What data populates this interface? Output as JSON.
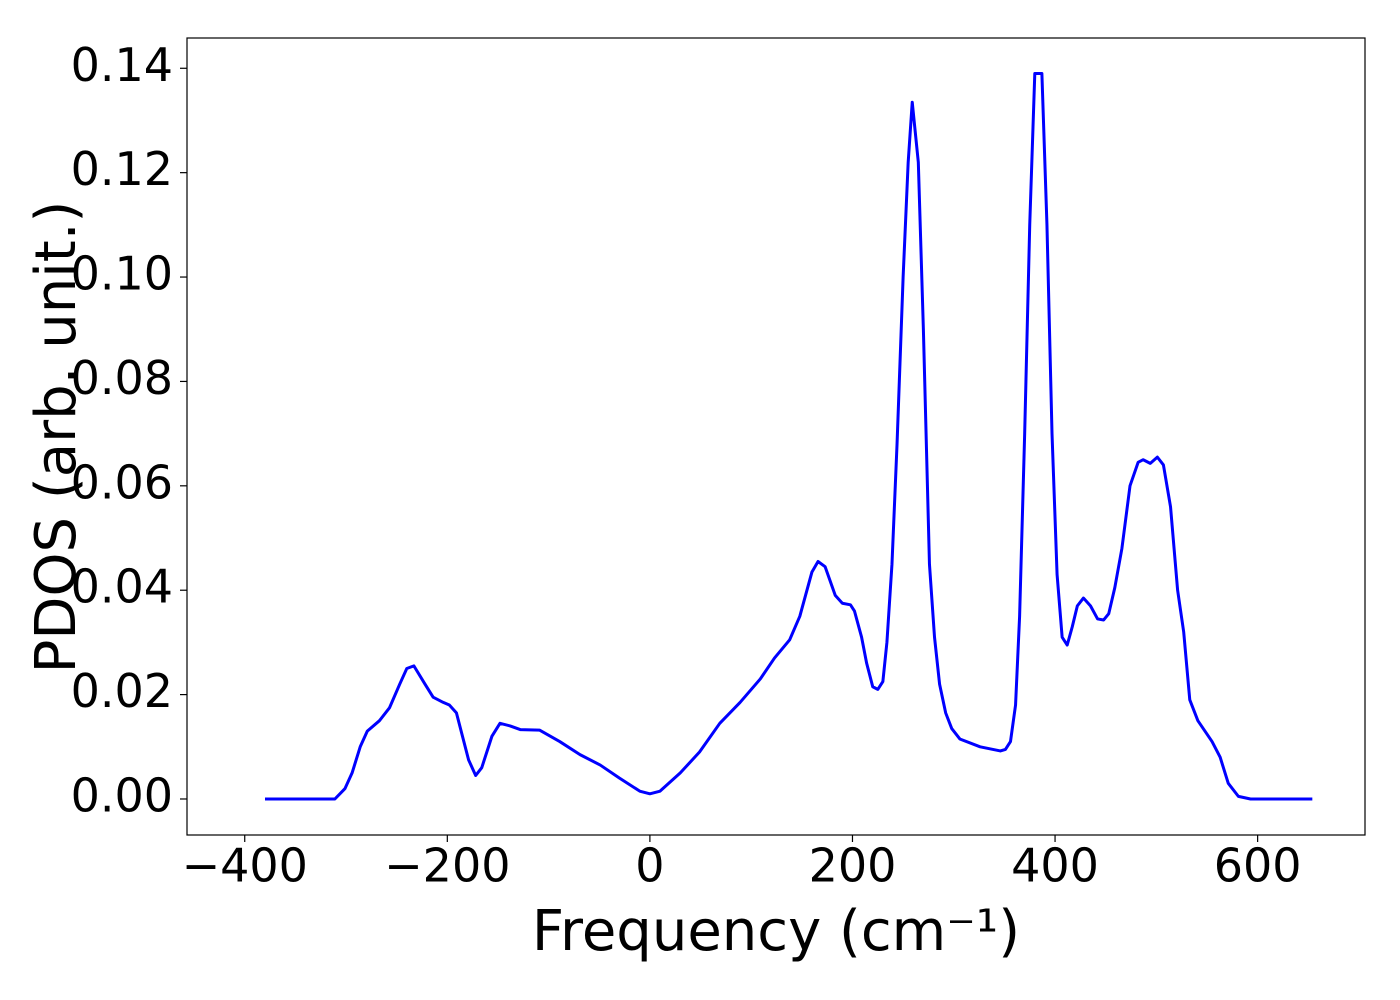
{
  "chart_data": {
    "type": "line",
    "xlabel": "Frequency (cm⁻¹)",
    "ylabel": "PDOS (arb. unit.)",
    "x": [
      -380,
      -311,
      -301,
      -294,
      -286,
      -279,
      -267,
      -257,
      -247,
      -240,
      -233,
      -222,
      -214,
      -204,
      -198,
      -191,
      -185,
      -179,
      -172,
      -166,
      -156,
      -148,
      -138,
      -128,
      -109,
      -89,
      -69,
      -49,
      -30,
      -10,
      0,
      10,
      30,
      49,
      69,
      89,
      109,
      123,
      138,
      148,
      160,
      166,
      173,
      183,
      190,
      198,
      202,
      209,
      214,
      220,
      225,
      230,
      234,
      239,
      244,
      250,
      255,
      259,
      265,
      270,
      276,
      281,
      286,
      292,
      298,
      306,
      326,
      346,
      351,
      356,
      361,
      365,
      370,
      375,
      380,
      387,
      392,
      397,
      402,
      407,
      412,
      417,
      422,
      428,
      435,
      442,
      448,
      453,
      459,
      466,
      474,
      482,
      487,
      494,
      501,
      507,
      514,
      521,
      527,
      533,
      541,
      555,
      563,
      571,
      581,
      593,
      654
    ],
    "series": [
      {
        "name": "PDOS",
        "color": "#0000ff",
        "values": [
          0,
          0,
          0.002,
          0.005,
          0.01,
          0.013,
          0.015,
          0.0175,
          0.022,
          0.025,
          0.0255,
          0.022,
          0.0195,
          0.0185,
          0.018,
          0.0165,
          0.012,
          0.0075,
          0.0045,
          0.006,
          0.012,
          0.0145,
          0.014,
          0.0133,
          0.0132,
          0.011,
          0.0085,
          0.0065,
          0.004,
          0.0015,
          0.001,
          0.0015,
          0.005,
          0.009,
          0.0145,
          0.0185,
          0.023,
          0.027,
          0.0305,
          0.035,
          0.0435,
          0.0455,
          0.0445,
          0.039,
          0.0375,
          0.0372,
          0.036,
          0.031,
          0.026,
          0.0215,
          0.021,
          0.0225,
          0.03,
          0.045,
          0.068,
          0.1,
          0.122,
          0.1335,
          0.122,
          0.09,
          0.045,
          0.031,
          0.022,
          0.0165,
          0.0135,
          0.0115,
          0.01,
          0.0092,
          0.0095,
          0.011,
          0.018,
          0.035,
          0.07,
          0.11,
          0.139,
          0.139,
          0.11,
          0.07,
          0.043,
          0.031,
          0.0295,
          0.033,
          0.037,
          0.0385,
          0.037,
          0.0345,
          0.0343,
          0.0355,
          0.0405,
          0.048,
          0.06,
          0.0645,
          0.065,
          0.0643,
          0.0655,
          0.064,
          0.056,
          0.04,
          0.032,
          0.019,
          0.015,
          0.011,
          0.008,
          0.003,
          0.0005,
          0,
          0
        ]
      }
    ],
    "xlim": [
      -457,
      706
    ],
    "ylim": [
      -0.0069,
      0.1458
    ],
    "xticks": [
      {
        "value": -400,
        "label": "−400"
      },
      {
        "value": -200,
        "label": "−200"
      },
      0,
      200,
      400,
      600
    ],
    "yticks": [
      {
        "value": 0,
        "label": "0.00"
      },
      0.02,
      0.04,
      0.06,
      0.08,
      {
        "value": 0.1,
        "label": "0.10"
      },
      0.12,
      0.14
    ]
  }
}
